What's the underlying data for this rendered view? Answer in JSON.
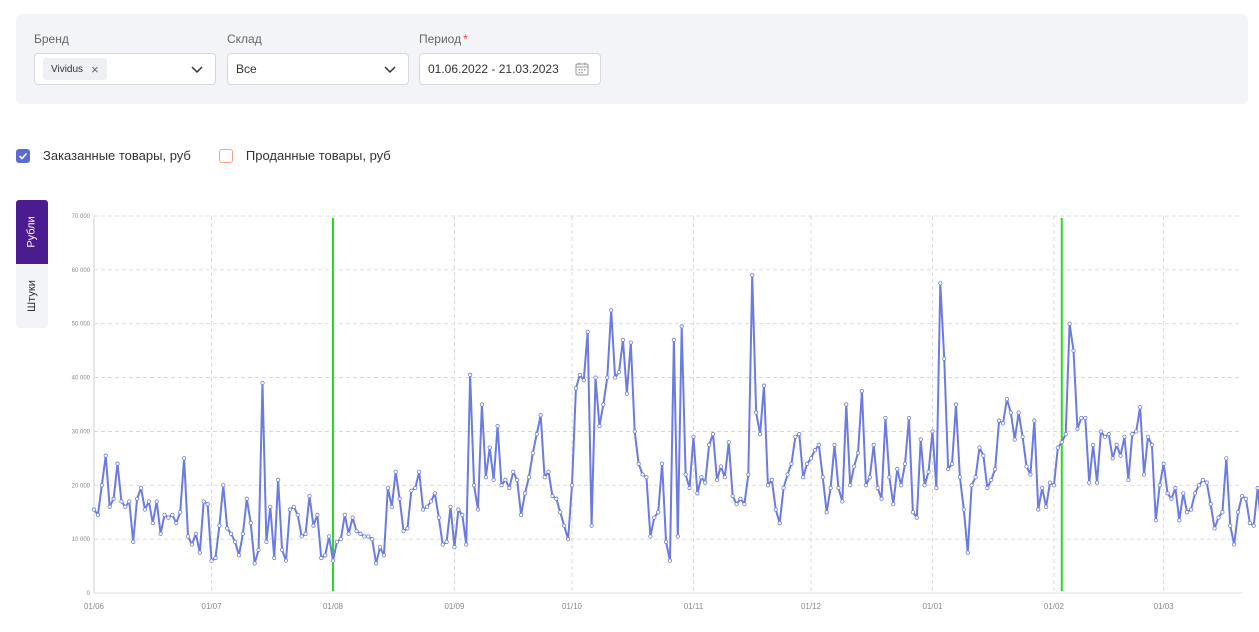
{
  "filters": {
    "brand": {
      "label": "Бренд",
      "chip": "Vividus",
      "chip_close": "×"
    },
    "warehouse": {
      "label": "Склад",
      "value": "Все"
    },
    "period": {
      "label": "Период",
      "required_mark": "*",
      "value": "01.06.2022 - 21.03.2023"
    }
  },
  "legend": [
    {
      "label": "Заказанные товары, руб",
      "checked": true,
      "color": "#5b6bd6"
    },
    {
      "label": "Проданные товары, руб",
      "checked": false,
      "color": "#f2a27e"
    }
  ],
  "side_tabs": {
    "rubles": "Рубли",
    "pieces": "Штуки",
    "active": "rubles"
  },
  "colors": {
    "line": "#6b7be0",
    "marker_line": "#22dd22",
    "accent": "#4b1c8f"
  },
  "chart_data": {
    "type": "line",
    "title": "",
    "xlabel": "",
    "ylabel": "",
    "x_range": [
      "2022-06-01",
      "2023-03-21"
    ],
    "ylim": [
      0,
      70000
    ],
    "y_ticks": [
      0,
      10000,
      20000,
      30000,
      40000,
      50000,
      60000,
      70000
    ],
    "y_tick_labels": [
      "0",
      "10 000",
      "20 000",
      "30 000",
      "40 000",
      "50 000",
      "60 000",
      "70 000"
    ],
    "x_ticks": [
      "2022-06-01",
      "2022-07-01",
      "2022-08-01",
      "2022-09-01",
      "2022-10-01",
      "2022-11-01",
      "2022-12-01",
      "2023-01-01",
      "2023-02-01",
      "2023-03-01"
    ],
    "x_tick_labels": [
      "01/06",
      "01/07",
      "01/08",
      "01/09",
      "01/10",
      "01/11",
      "01/12",
      "01/01",
      "01/02",
      "01/03"
    ],
    "grid": true,
    "vertical_markers": [
      "2022-08-01",
      "2023-02-03"
    ],
    "series": [
      {
        "start_date": "2022-06-01",
        "step_days": 1,
        "values": [
          15500,
          14500,
          20000,
          25500,
          16000,
          17500,
          24000,
          17000,
          16000,
          17000,
          9500,
          17500,
          19500,
          15500,
          17000,
          13000,
          17000,
          11000,
          14500,
          14000,
          14500,
          13000,
          15000,
          25000,
          10500,
          9000,
          11000,
          7500,
          17000,
          16500,
          6000,
          6500,
          12500,
          20000,
          12000,
          11000,
          9500,
          7000,
          11000,
          17500,
          13000,
          5500,
          8000,
          39000,
          9500,
          16000,
          6500,
          21000,
          8000,
          6000,
          15500,
          16000,
          14500,
          10500,
          11000,
          18000,
          12500,
          14500,
          6500,
          7000,
          10500,
          6000,
          9500,
          10000,
          14500,
          11000,
          14000,
          11500,
          11000,
          10500,
          10500,
          10000,
          5500,
          8500,
          7000,
          19500,
          16000,
          22500,
          17500,
          11500,
          12000,
          19000,
          19500,
          22500,
          15500,
          16000,
          17000,
          18500,
          14000,
          9000,
          9500,
          16000,
          8500,
          15500,
          14500,
          9000,
          40500,
          20000,
          15500,
          35000,
          21500,
          27000,
          21000,
          31000,
          20000,
          21000,
          19500,
          22500,
          21000,
          14500,
          18500,
          21500,
          26000,
          29500,
          33000,
          21500,
          22500,
          18000,
          17500,
          15000,
          12500,
          10000,
          20000,
          38000,
          40500,
          39500,
          48500,
          12500,
          40000,
          31000,
          35000,
          40000,
          52500,
          40000,
          41000,
          47000,
          37000,
          46500,
          30000,
          24000,
          22000,
          21500,
          10500,
          14000,
          15000,
          24000,
          9500,
          6000,
          47000,
          10500,
          49500,
          22000,
          19500,
          29000,
          18500,
          21500,
          20500,
          27500,
          29500,
          21000,
          23500,
          21500,
          28000,
          18000,
          16500,
          17500,
          16500,
          22000,
          59000,
          33500,
          29500,
          38500,
          20000,
          21000,
          15500,
          13000,
          19500,
          22000,
          24000,
          29000,
          29500,
          21500,
          24000,
          25000,
          26500,
          27500,
          21500,
          15000,
          19500,
          27500,
          19500,
          17000,
          35000,
          20000,
          23500,
          26000,
          37500,
          20000,
          21500,
          27500,
          19500,
          17500,
          32500,
          21500,
          16500,
          23000,
          20000,
          24000,
          32500,
          15000,
          14000,
          28500,
          20000,
          22500,
          30000,
          19500,
          57500,
          43500,
          23000,
          24000,
          35000,
          21500,
          15500,
          7500,
          20000,
          21500,
          27000,
          25500,
          19500,
          21000,
          23000,
          32000,
          31500,
          36000,
          33500,
          28500,
          33500,
          29000,
          23500,
          22000,
          32000,
          15500,
          19500,
          16000,
          20500,
          20000,
          27000,
          28000,
          29500,
          50000,
          45000,
          30500,
          32500,
          32500,
          20500,
          27500,
          20500,
          30000,
          29000,
          29500,
          25000,
          27500,
          25500,
          29000,
          21000,
          29500,
          30000,
          34500,
          22000,
          29000,
          27500,
          13500,
          20000,
          24000,
          18500,
          17500,
          19500,
          13500,
          18500,
          15000,
          15500,
          18500,
          20000,
          21000,
          20500,
          16500,
          12000,
          14000,
          15000,
          25000,
          12500,
          9000,
          15000,
          18000,
          17500,
          13000,
          12500,
          19500,
          12000,
          17500,
          11500,
          19500,
          15000,
          32500
        ]
      }
    ]
  }
}
